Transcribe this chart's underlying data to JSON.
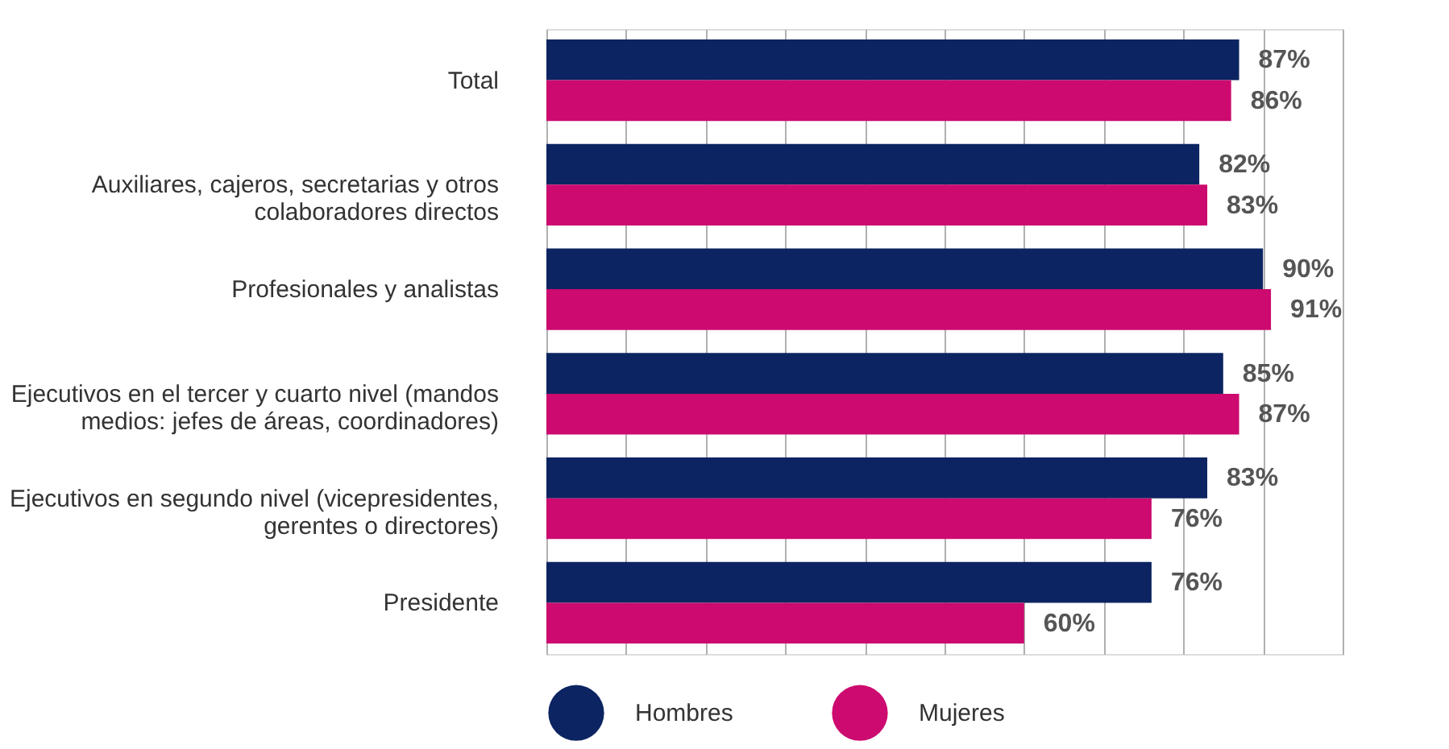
{
  "chart_data": {
    "type": "bar",
    "orientation": "horizontal",
    "categories": [
      "Total",
      "Auxiliares, cajeros, secretarias y otros colaboradores directos",
      "Profesionales y analistas",
      "Ejecutivos en el tercer y cuarto nivel (mandos medios: jefes de áreas, coordinadores)",
      "Ejecutivos en segundo nivel (vicepresidentes, gerentes o directores)",
      "Presidente"
    ],
    "series": [
      {
        "name": "Hombres",
        "color": "#0c2461",
        "values": [
          87,
          82,
          90,
          85,
          83,
          76
        ],
        "value_labels": [
          "87%",
          "82%",
          "90%",
          "85%",
          "83%",
          "76%"
        ]
      },
      {
        "name": "Mujeres",
        "color": "#cc0a6f",
        "values": [
          86,
          83,
          91,
          87,
          76,
          60
        ],
        "value_labels": [
          "86%",
          "83%",
          "91%",
          "87%",
          "76%",
          "60%"
        ]
      }
    ],
    "xlim": [
      0,
      100
    ],
    "xticks": [
      {
        "value": 0,
        "label": null
      },
      {
        "value": 10,
        "label": null
      },
      {
        "value": 20,
        "label": null
      },
      {
        "value": 30,
        "label": null
      },
      {
        "value": 40,
        "label": null
      },
      {
        "value": 50,
        "label": null
      },
      {
        "value": 60,
        "label": null
      },
      {
        "value": 70,
        "label": null
      },
      {
        "value": 80,
        "label": null
      },
      {
        "value": 90,
        "label": null
      },
      {
        "value": 100,
        "label": null
      }
    ],
    "grid": "x",
    "tick_labels": "y",
    "legend": "bottom"
  }
}
